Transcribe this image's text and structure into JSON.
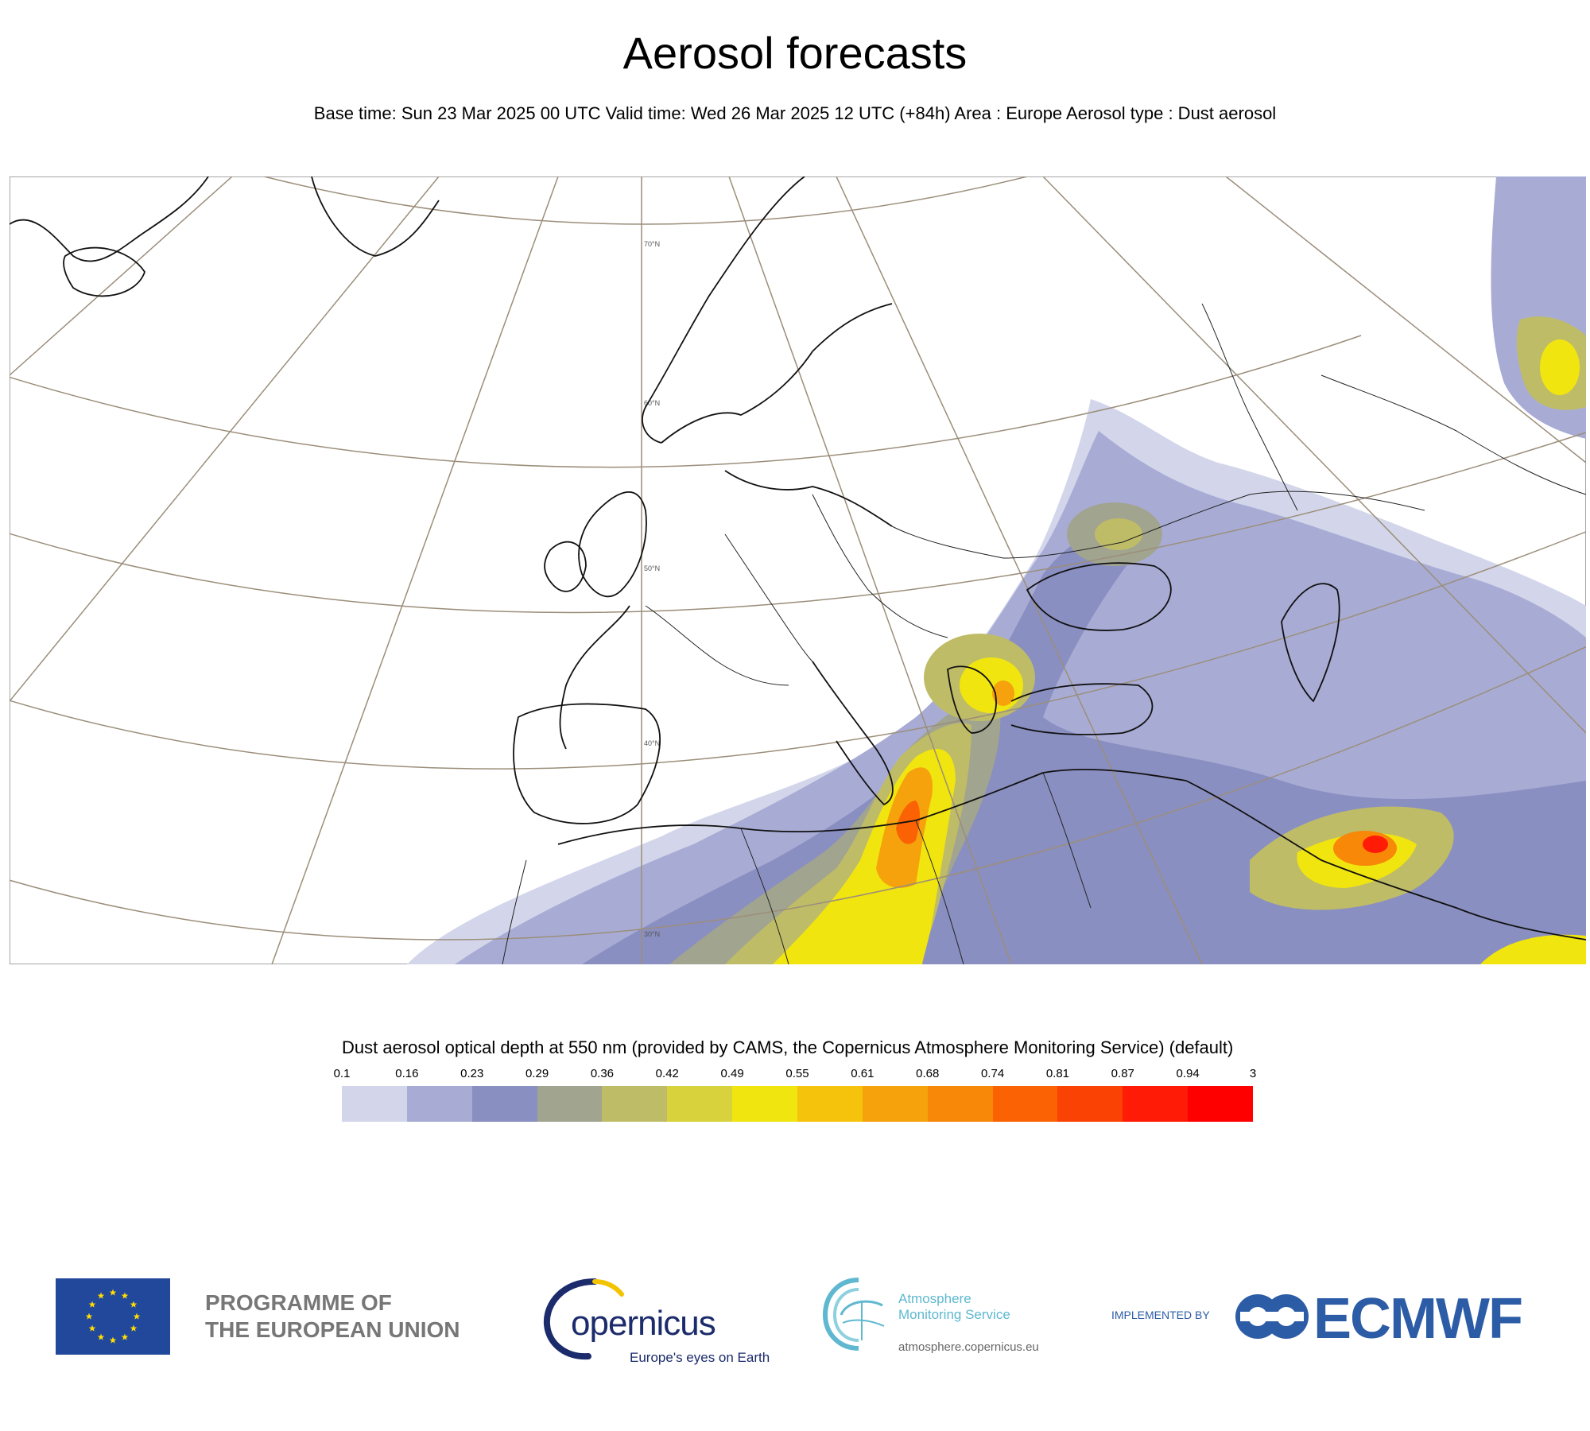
{
  "header": {
    "title": "Aerosol forecasts",
    "subtitle": "Base time: Sun 23 Mar 2025 00 UTC Valid time: Wed 26 Mar 2025 12 UTC (+84h) Area : Europe Aerosol type : Dust aerosol"
  },
  "map": {
    "lat_labels": [
      "70°N",
      "60°N",
      "50°N",
      "40°N",
      "30°N"
    ]
  },
  "legend": {
    "title": "Dust aerosol optical depth at 550 nm (provided by CAMS, the Copernicus Atmosphere Monitoring Service) (default)",
    "ticks": [
      "0.1",
      "0.16",
      "0.23",
      "0.29",
      "0.36",
      "0.42",
      "0.49",
      "0.55",
      "0.61",
      "0.68",
      "0.74",
      "0.81",
      "0.87",
      "0.94",
      "3"
    ],
    "colors": [
      "#d3d6ea",
      "#a8acd5",
      "#8a8fc1",
      "#a1a48f",
      "#bfbc67",
      "#d8d23c",
      "#f1e50f",
      "#f6c30c",
      "#f5a20d",
      "#f78808",
      "#fa6204",
      "#fb4205",
      "#ff1b06",
      "#ff0000"
    ]
  },
  "footer": {
    "eu_line1": "PROGRAMME OF",
    "eu_line2": "THE EUROPEAN UNION",
    "copernicus_word": "opernicus",
    "copernicus_tagline": "Europe's eyes on Earth",
    "cams_line1": "Atmosphere",
    "cams_line2": "Monitoring Service",
    "cams_url": "atmosphere.copernicus.eu",
    "implemented_by": "IMPLEMENTED BY",
    "ecmwf": "ECMWF",
    "icons": [
      "eu-flag-icon",
      "copernicus-swoosh-icon",
      "cams-globe-icon",
      "ecmwf-logo-icon"
    ]
  }
}
